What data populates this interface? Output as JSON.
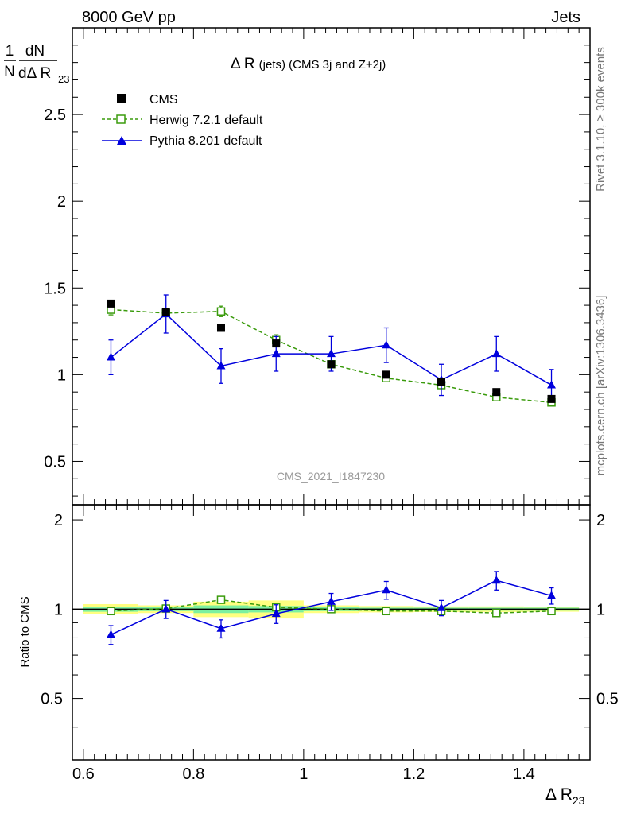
{
  "header": {
    "left": "8000 GeV pp",
    "right": "Jets"
  },
  "side_text": {
    "top": "Rivet 3.1.10, ≥ 300k events",
    "bottom": "mcplots.cern.ch [arXiv:1306.3436]"
  },
  "watermark": "CMS_2021_I1847230",
  "colors": {
    "cms": "#000000",
    "herwig": "#3a9b0c",
    "pythia": "#0000dd",
    "band_inner": "#7cf0a0",
    "band_outer": "#ffff80"
  },
  "chart_data": [
    {
      "panel": "main",
      "type": "scatter",
      "title_main": "Δ R",
      "title_rest": "(jets) (CMS 3j and Z+2j)",
      "ylabel_frac_num": "1",
      "ylabel_frac_den": "N",
      "ylabel_dn": "dN",
      "ylabel_dr": "dΔ R",
      "ylabel_sub": "23",
      "xlim": [
        0.58,
        1.52
      ],
      "ylim": [
        0.25,
        3.0
      ],
      "yticks": [
        0.5,
        1,
        1.5,
        2,
        2.5
      ],
      "ytick_labels": [
        "0.5",
        "1",
        "1.5",
        "2",
        "2.5"
      ],
      "x": [
        0.65,
        0.75,
        0.85,
        0.95,
        1.05,
        1.15,
        1.25,
        1.35,
        1.45
      ],
      "series": [
        {
          "name": "CMS",
          "marker": "square-filled",
          "line": "none",
          "y": [
            1.41,
            1.36,
            1.27,
            1.18,
            1.06,
            1.0,
            0.96,
            0.9,
            0.86
          ],
          "err": [
            0.01,
            0.01,
            0.01,
            0.01,
            0.01,
            0.01,
            0.01,
            0.01,
            0.01
          ]
        },
        {
          "name": "Herwig 7.2.1 default",
          "marker": "square-open",
          "line": "dashed",
          "y": [
            1.375,
            1.355,
            1.365,
            1.2,
            1.06,
            0.98,
            0.94,
            0.87,
            0.84
          ],
          "err": [
            0.03,
            0.02,
            0.03,
            0.03,
            0.02,
            0.02,
            0.02,
            0.02,
            0.02
          ]
        },
        {
          "name": "Pythia 8.201 default",
          "marker": "triangle-filled",
          "line": "solid",
          "y": [
            1.1,
            1.35,
            1.05,
            1.12,
            1.12,
            1.17,
            0.97,
            1.12,
            0.94
          ],
          "err": [
            0.1,
            0.11,
            0.1,
            0.1,
            0.1,
            0.1,
            0.09,
            0.1,
            0.09
          ]
        }
      ]
    },
    {
      "panel": "ratio",
      "type": "scatter",
      "ylabel": "Ratio to CMS",
      "xlabel_main": "Δ R",
      "xlabel_sub": "23",
      "xlim": [
        0.58,
        1.52
      ],
      "ylim": [
        0.31,
        2.25
      ],
      "yticks": [
        0.5,
        1,
        2
      ],
      "ytick_labels": [
        "0.5",
        "1",
        "2"
      ],
      "xticks": [
        0.6,
        0.8,
        1.0,
        1.2,
        1.4
      ],
      "xtick_labels": [
        "0.6",
        "0.8",
        "1",
        "1.2",
        "1.4"
      ],
      "x": [
        0.65,
        0.75,
        0.85,
        0.95,
        1.05,
        1.15,
        1.25,
        1.35,
        1.45
      ],
      "band_halfwidth": 0.05,
      "band_inner": [
        0.02,
        0.015,
        0.03,
        0.025,
        0.015,
        0.012,
        0.012,
        0.012,
        0.012
      ],
      "band_outer": [
        0.04,
        0.03,
        0.06,
        0.07,
        0.03,
        0.025,
        0.022,
        0.022,
        0.02
      ],
      "series": [
        {
          "name": "Herwig 7.2.1 default",
          "marker": "square-open",
          "line": "dashed",
          "y": [
            0.985,
            1.005,
            1.075,
            1.015,
            1.0,
            0.985,
            0.985,
            0.97,
            0.985
          ],
          "err": [
            0.02,
            0.02,
            0.02,
            0.02,
            0.02,
            0.02,
            0.02,
            0.02,
            0.02
          ]
        },
        {
          "name": "Pythia 8.201 default",
          "marker": "triangle-filled",
          "line": "solid",
          "y": [
            0.82,
            1.0,
            0.86,
            0.965,
            1.06,
            1.16,
            1.01,
            1.25,
            1.11
          ],
          "err": [
            0.06,
            0.07,
            0.06,
            0.07,
            0.07,
            0.08,
            0.06,
            0.09,
            0.07
          ]
        }
      ]
    }
  ]
}
